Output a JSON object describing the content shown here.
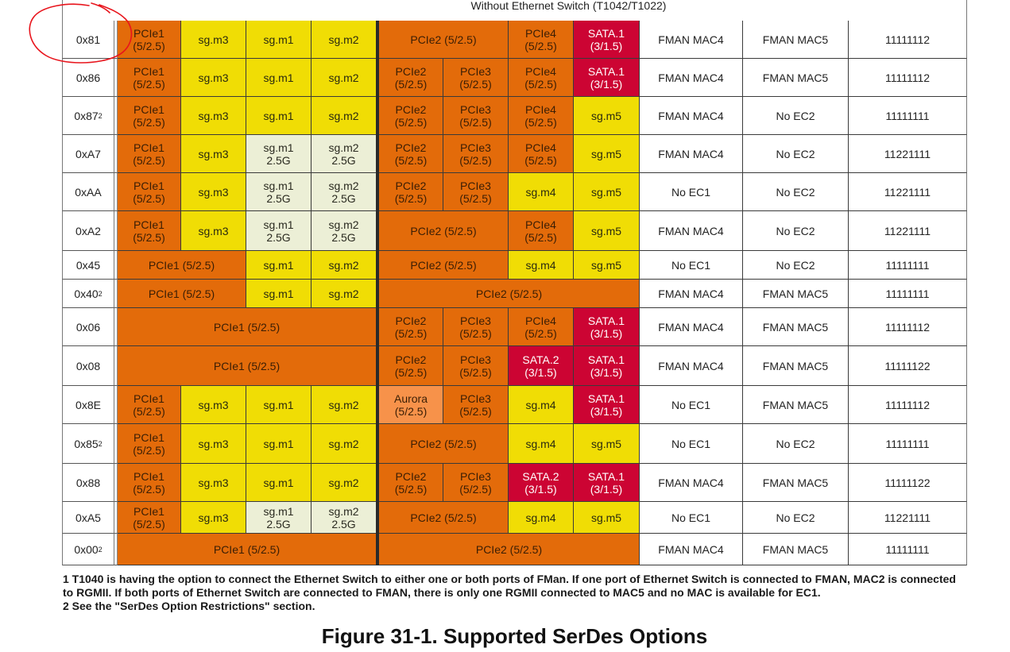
{
  "header": {
    "title": "Without Ethernet Switch (T1042/T1022)"
  },
  "colors": {
    "pcie_orange": "#e36b0a",
    "sgmii_yellow": "#f0dd05",
    "sgmii_2_5g_pale": "#ecefd6",
    "sata_red": "#cc0433",
    "aurora_light_orange": "#f7924a",
    "annotation_red": "#e8141c"
  },
  "rows": [
    {
      "hex": "0x81",
      "sup": "",
      "cells": [
        {
          "t": "PCIe1\n(5/2.5)",
          "c": "o",
          "s": 1
        },
        {
          "t": "sg.m3",
          "c": "y",
          "s": 1
        },
        {
          "t": "sg.m1",
          "c": "y",
          "s": 1
        },
        {
          "t": "sg.m2",
          "c": "y",
          "s": 1
        },
        {
          "t": "PCIe2 (5/2.5)",
          "c": "o",
          "s": 2
        },
        {
          "t": "PCIe4\n(5/2.5)",
          "c": "o",
          "s": 1
        },
        {
          "t": "SATA.1\n(3/1.5)",
          "c": "r",
          "s": 1
        }
      ],
      "ec1": "FMAN MAC4",
      "ec2": "FMAN MAC5",
      "code": "11111112"
    },
    {
      "hex": "0x86",
      "sup": "",
      "cells": [
        {
          "t": "PCIe1\n(5/2.5)",
          "c": "o",
          "s": 1
        },
        {
          "t": "sg.m3",
          "c": "y",
          "s": 1
        },
        {
          "t": "sg.m1",
          "c": "y",
          "s": 1
        },
        {
          "t": "sg.m2",
          "c": "y",
          "s": 1
        },
        {
          "t": "PCIe2\n(5/2.5)",
          "c": "o",
          "s": 1
        },
        {
          "t": "PCIe3\n(5/2.5)",
          "c": "o",
          "s": 1
        },
        {
          "t": "PCIe4\n(5/2.5)",
          "c": "o",
          "s": 1
        },
        {
          "t": "SATA.1\n(3/1.5)",
          "c": "r",
          "s": 1
        }
      ],
      "ec1": "FMAN MAC4",
      "ec2": "FMAN MAC5",
      "code": "11111112"
    },
    {
      "hex": "0x87",
      "sup": "2",
      "cells": [
        {
          "t": "PCIe1\n(5/2.5)",
          "c": "o",
          "s": 1
        },
        {
          "t": "sg.m3",
          "c": "y",
          "s": 1
        },
        {
          "t": "sg.m1",
          "c": "y",
          "s": 1
        },
        {
          "t": "sg.m2",
          "c": "y",
          "s": 1
        },
        {
          "t": "PCIe2\n(5/2.5)",
          "c": "o",
          "s": 1
        },
        {
          "t": "PCIe3\n(5/2.5)",
          "c": "o",
          "s": 1
        },
        {
          "t": "PCIe4\n(5/2.5)",
          "c": "o",
          "s": 1
        },
        {
          "t": "sg.m5",
          "c": "y",
          "s": 1
        }
      ],
      "ec1": "FMAN MAC4",
      "ec2": "No EC2",
      "code": "11111111"
    },
    {
      "hex": "0xA7",
      "sup": "",
      "cells": [
        {
          "t": "PCIe1\n(5/2.5)",
          "c": "o",
          "s": 1
        },
        {
          "t": "sg.m3",
          "c": "y",
          "s": 1
        },
        {
          "t": "sg.m1\n2.5G",
          "c": "p",
          "s": 1
        },
        {
          "t": "sg.m2\n2.5G",
          "c": "p",
          "s": 1
        },
        {
          "t": "PCIe2\n(5/2.5)",
          "c": "o",
          "s": 1
        },
        {
          "t": "PCIe3\n(5/2.5)",
          "c": "o",
          "s": 1
        },
        {
          "t": "PCIe4\n(5/2.5)",
          "c": "o",
          "s": 1
        },
        {
          "t": "sg.m5",
          "c": "y",
          "s": 1
        }
      ],
      "ec1": "FMAN MAC4",
      "ec2": "No EC2",
      "code": "11221111"
    },
    {
      "hex": "0xAA",
      "sup": "",
      "cells": [
        {
          "t": "PCIe1\n(5/2.5)",
          "c": "o",
          "s": 1
        },
        {
          "t": "sg.m3",
          "c": "y",
          "s": 1
        },
        {
          "t": "sg.m1\n2.5G",
          "c": "p",
          "s": 1
        },
        {
          "t": "sg.m2\n2.5G",
          "c": "p",
          "s": 1
        },
        {
          "t": "PCIe2\n(5/2.5)",
          "c": "o",
          "s": 1
        },
        {
          "t": "PCIe3\n(5/2.5)",
          "c": "o",
          "s": 1
        },
        {
          "t": "sg.m4",
          "c": "y",
          "s": 1
        },
        {
          "t": "sg.m5",
          "c": "y",
          "s": 1
        }
      ],
      "ec1": "No EC1",
      "ec2": "No EC2",
      "code": "11221111"
    },
    {
      "hex": "0xA2",
      "sup": "",
      "cells": [
        {
          "t": "PCIe1\n(5/2.5)",
          "c": "o",
          "s": 1
        },
        {
          "t": "sg.m3",
          "c": "y",
          "s": 1
        },
        {
          "t": "sg.m1\n2.5G",
          "c": "p",
          "s": 1
        },
        {
          "t": "sg.m2\n2.5G",
          "c": "p",
          "s": 1
        },
        {
          "t": "PCIe2 (5/2.5)",
          "c": "o",
          "s": 2
        },
        {
          "t": "PCIe4\n(5/2.5)",
          "c": "o",
          "s": 1
        },
        {
          "t": "sg.m5",
          "c": "y",
          "s": 1
        }
      ],
      "ec1": "FMAN MAC4",
      "ec2": "No EC2",
      "code": "11221111"
    },
    {
      "hex": "0x45",
      "sup": "",
      "cells": [
        {
          "t": "PCIe1 (5/2.5)",
          "c": "o",
          "s": 2
        },
        {
          "t": "sg.m1",
          "c": "y",
          "s": 1
        },
        {
          "t": "sg.m2",
          "c": "y",
          "s": 1
        },
        {
          "t": "PCIe2 (5/2.5)",
          "c": "o",
          "s": 2
        },
        {
          "t": "sg.m4",
          "c": "y",
          "s": 1
        },
        {
          "t": "sg.m5",
          "c": "y",
          "s": 1
        }
      ],
      "ec1": "No EC1",
      "ec2": "No EC2",
      "code": "11111111"
    },
    {
      "hex": "0x40",
      "sup": "2",
      "cells": [
        {
          "t": "PCIe1 (5/2.5)",
          "c": "o",
          "s": 2
        },
        {
          "t": "sg.m1",
          "c": "y",
          "s": 1
        },
        {
          "t": "sg.m2",
          "c": "y",
          "s": 1
        },
        {
          "t": "PCIe2 (5/2.5)",
          "c": "o",
          "s": 4
        }
      ],
      "ec1": "FMAN MAC4",
      "ec2": "FMAN MAC5",
      "code": "11111111"
    },
    {
      "hex": "0x06",
      "sup": "",
      "cells": [
        {
          "t": "PCIe1 (5/2.5)",
          "c": "o",
          "s": 4
        },
        {
          "t": "PCIe2\n(5/2.5)",
          "c": "o",
          "s": 1
        },
        {
          "t": "PCIe3\n(5/2.5)",
          "c": "o",
          "s": 1
        },
        {
          "t": "PCIe4\n(5/2.5)",
          "c": "o",
          "s": 1
        },
        {
          "t": "SATA.1\n(3/1.5)",
          "c": "r",
          "s": 1
        }
      ],
      "ec1": "FMAN MAC4",
      "ec2": "FMAN MAC5",
      "code": "11111112"
    },
    {
      "hex": "0x08",
      "sup": "",
      "cells": [
        {
          "t": "PCIe1 (5/2.5)",
          "c": "o",
          "s": 4
        },
        {
          "t": "PCIe2\n(5/2.5)",
          "c": "o",
          "s": 1
        },
        {
          "t": "PCIe3\n(5/2.5)",
          "c": "o",
          "s": 1
        },
        {
          "t": "SATA.2\n(3/1.5)",
          "c": "r",
          "s": 1
        },
        {
          "t": "SATA.1\n(3/1.5)",
          "c": "r",
          "s": 1
        }
      ],
      "ec1": "FMAN MAC4",
      "ec2": "FMAN MAC5",
      "code": "11111122"
    },
    {
      "hex": "0x8E",
      "sup": "",
      "cells": [
        {
          "t": "PCIe1\n(5/2.5)",
          "c": "o",
          "s": 1
        },
        {
          "t": "sg.m3",
          "c": "y",
          "s": 1
        },
        {
          "t": "sg.m1",
          "c": "y",
          "s": 1
        },
        {
          "t": "sg.m2",
          "c": "y",
          "s": 1
        },
        {
          "t": "Aurora\n(5/2.5)",
          "c": "a",
          "s": 1
        },
        {
          "t": "PCIe3\n(5/2.5)",
          "c": "o",
          "s": 1
        },
        {
          "t": "sg.m4",
          "c": "y",
          "s": 1
        },
        {
          "t": "SATA.1\n(3/1.5)",
          "c": "r",
          "s": 1
        }
      ],
      "ec1": "No EC1",
      "ec2": "FMAN MAC5",
      "code": "11111112"
    },
    {
      "hex": "0x85",
      "sup": "2",
      "cells": [
        {
          "t": "PCIe1\n(5/2.5)",
          "c": "o",
          "s": 1
        },
        {
          "t": "sg.m3",
          "c": "y",
          "s": 1
        },
        {
          "t": "sg.m1",
          "c": "y",
          "s": 1
        },
        {
          "t": "sg.m2",
          "c": "y",
          "s": 1
        },
        {
          "t": "PCIe2 (5/2.5)",
          "c": "o",
          "s": 2
        },
        {
          "t": "sg.m4",
          "c": "y",
          "s": 1
        },
        {
          "t": "sg.m5",
          "c": "y",
          "s": 1
        }
      ],
      "ec1": "No EC1",
      "ec2": "No EC2",
      "code": "11111111"
    },
    {
      "hex": "0x88",
      "sup": "",
      "cells": [
        {
          "t": "PCIe1\n(5/2.5)",
          "c": "o",
          "s": 1
        },
        {
          "t": "sg.m3",
          "c": "y",
          "s": 1
        },
        {
          "t": "sg.m1",
          "c": "y",
          "s": 1
        },
        {
          "t": "sg.m2",
          "c": "y",
          "s": 1
        },
        {
          "t": "PCIe2\n(5/2.5)",
          "c": "o",
          "s": 1
        },
        {
          "t": "PCIe3\n(5/2.5)",
          "c": "o",
          "s": 1
        },
        {
          "t": "SATA.2\n(3/1.5)",
          "c": "r",
          "s": 1
        },
        {
          "t": "SATA.1\n(3/1.5)",
          "c": "r",
          "s": 1
        }
      ],
      "ec1": "FMAN MAC4",
      "ec2": "FMAN MAC5",
      "code": "11111122"
    },
    {
      "hex": "0xA5",
      "sup": "",
      "cells": [
        {
          "t": "PCIe1\n(5/2.5)",
          "c": "o",
          "s": 1
        },
        {
          "t": "sg.m3",
          "c": "y",
          "s": 1
        },
        {
          "t": "sg.m1\n2.5G",
          "c": "p",
          "s": 1
        },
        {
          "t": "sg.m2\n2.5G",
          "c": "p",
          "s": 1
        },
        {
          "t": "PCIe2 (5/2.5)",
          "c": "o",
          "s": 2
        },
        {
          "t": "sg.m4",
          "c": "y",
          "s": 1
        },
        {
          "t": "sg.m5",
          "c": "y",
          "s": 1
        }
      ],
      "ec1": "No EC1",
      "ec2": "No EC2",
      "code": "11221111"
    },
    {
      "hex": "0x00",
      "sup": "2",
      "cells": [
        {
          "t": "PCIe1 (5/2.5)",
          "c": "o",
          "s": 4
        },
        {
          "t": "PCIe2 (5/2.5)",
          "c": "o",
          "s": 4
        }
      ],
      "ec1": "FMAN MAC4",
      "ec2": "FMAN MAC5",
      "code": "11111111"
    }
  ],
  "footnotes": {
    "note1": "1 T1040 is having the option to connect the Ethernet Switch to either one or both ports of FMan. If one port of Ethernet Switch is connected to FMAN, MAC2 is connected to RGMII. If both ports of Ethernet Switch are connected to FMAN, there is only one RGMII connected to MAC5 and no MAC is available for EC1.",
    "note2": "2 See the \"SerDes Option Restrictions\" section."
  },
  "caption": "Figure 31-1. Supported SerDes Options",
  "annotation": {
    "type": "hand-drawn-circle",
    "target": "0x81",
    "color": "#e8141c"
  }
}
